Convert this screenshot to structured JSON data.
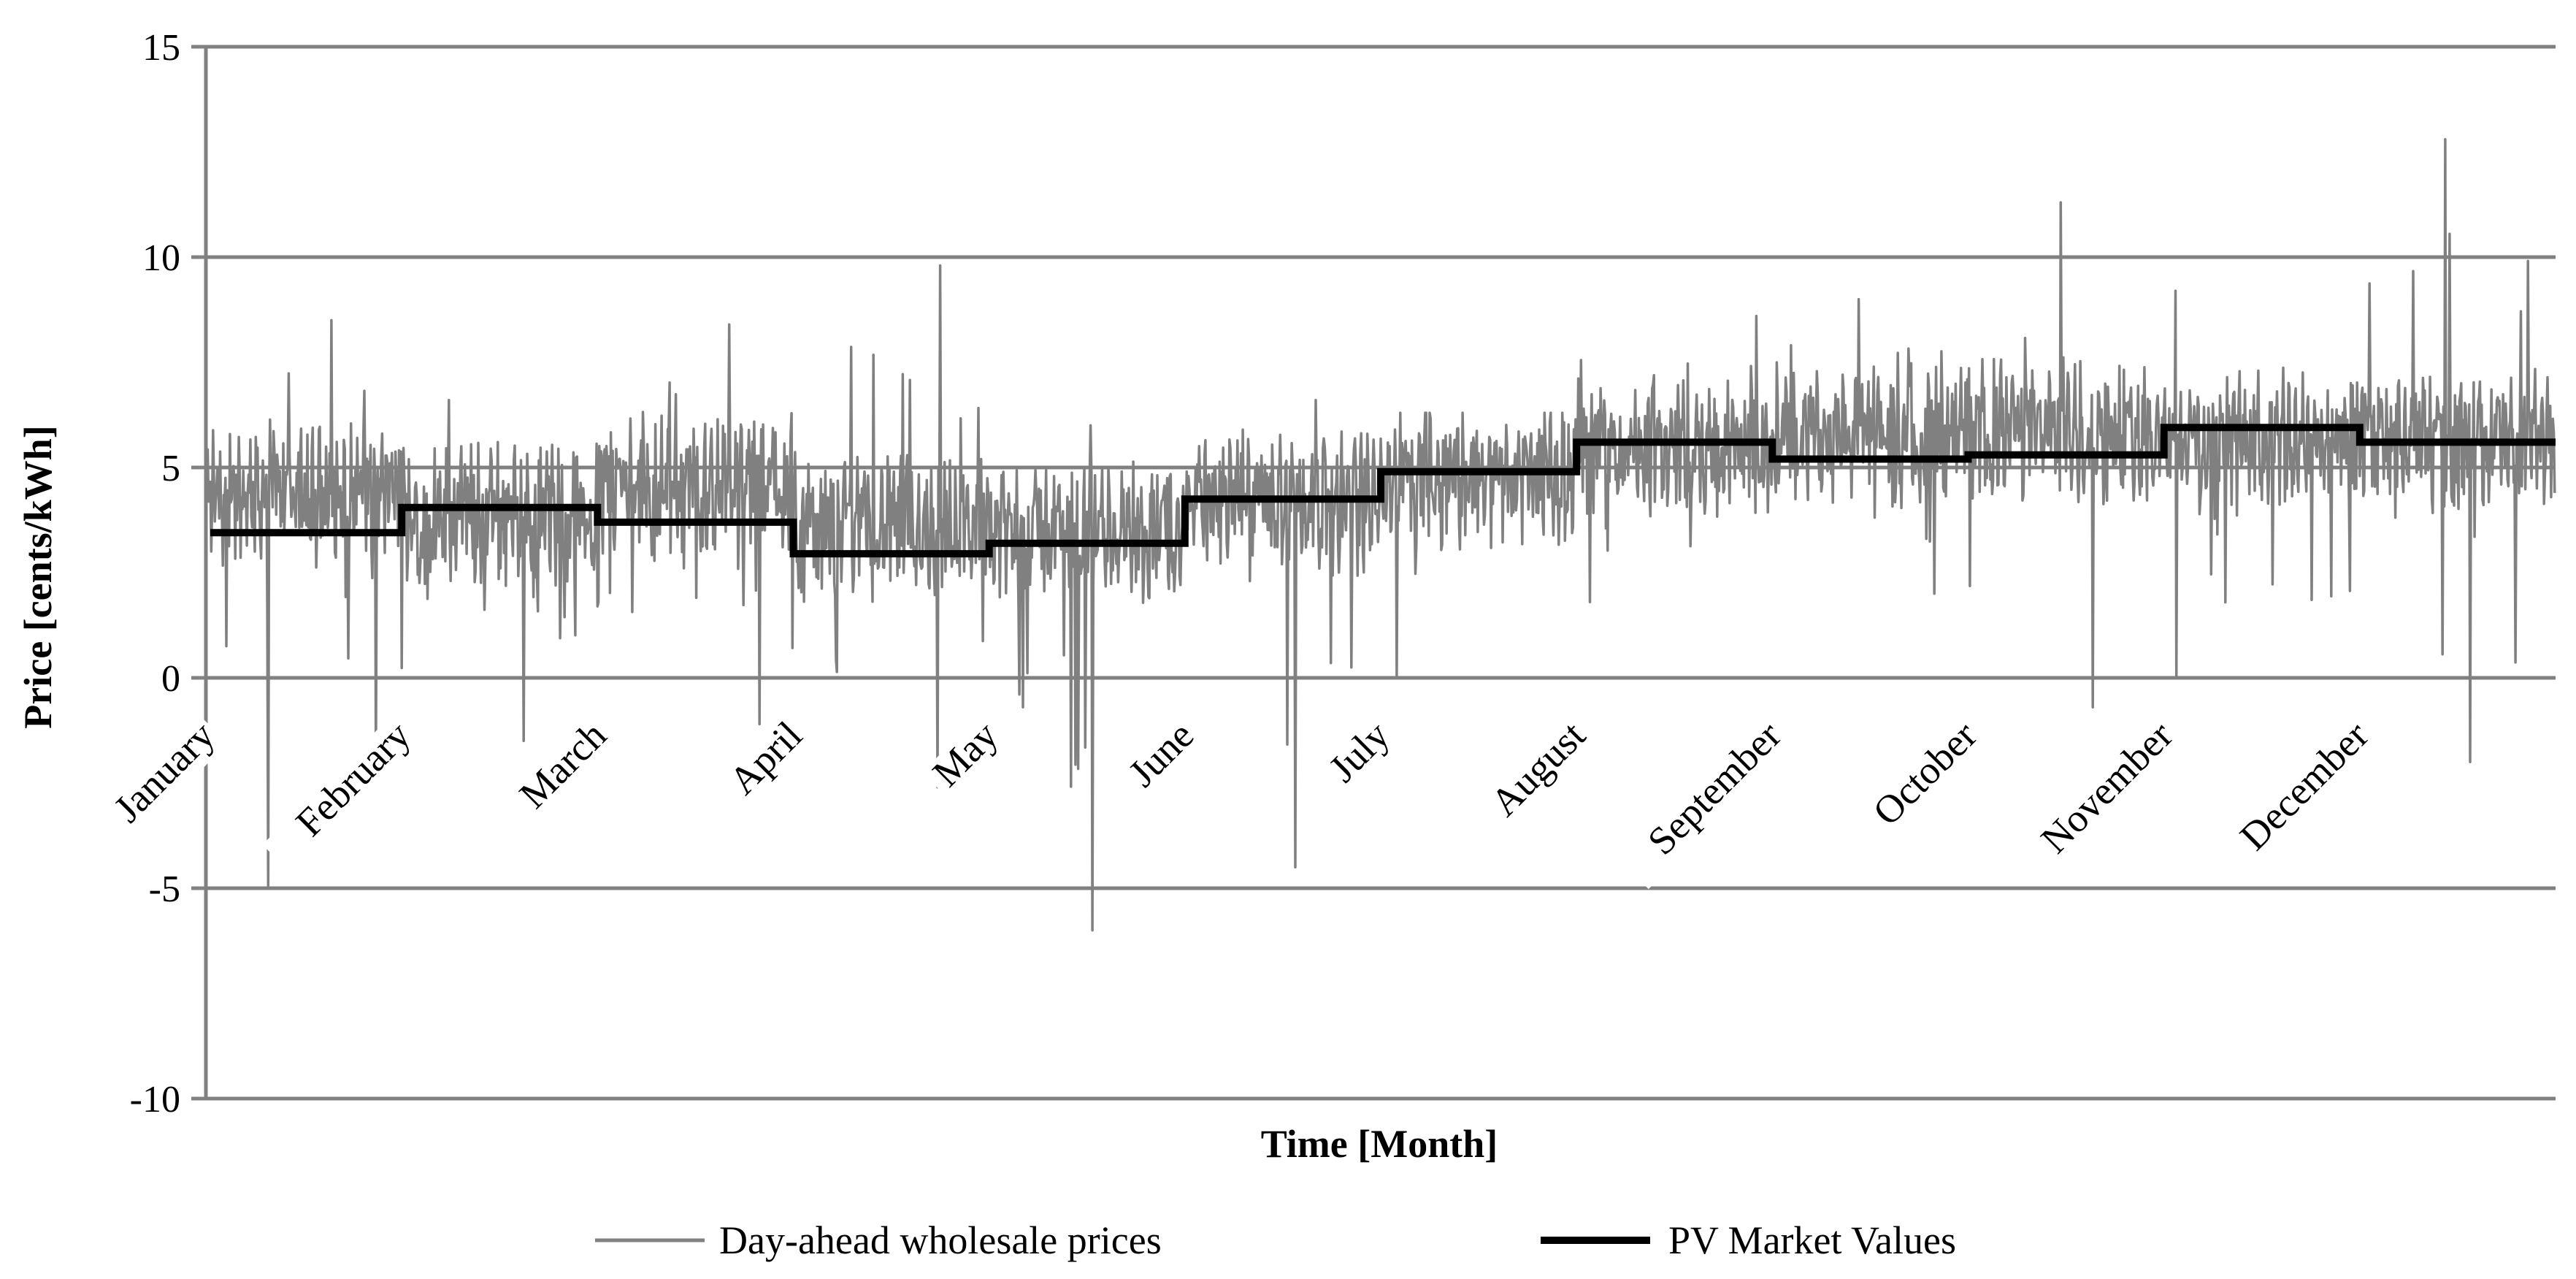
{
  "chart_data": {
    "type": "line",
    "title": "",
    "xlabel": "Time [Month]",
    "ylabel": "Price [cents/kWh]",
    "ylim": [
      -10,
      15
    ],
    "yticks": [
      15,
      10,
      5,
      0,
      -5,
      -10
    ],
    "ytick_labels": [
      "15",
      "10",
      "5",
      "0",
      "-5",
      "-10"
    ],
    "grid": true,
    "legend_position": "bottom",
    "categories": [
      "January",
      "February",
      "March",
      "April",
      "May",
      "June",
      "July",
      "August",
      "September",
      "October",
      "November",
      "December"
    ],
    "series": [
      {
        "name": "Day-ahead wholesale prices",
        "color": "#808080",
        "monthly_mean": [
          4.4,
          3.9,
          4.6,
          3.6,
          3.5,
          4.2,
          4.8,
          5.4,
          5.8,
          5.9,
          5.6,
          5.6
        ],
        "monthly_max": [
          8.5,
          6.6,
          8.4,
          9.8,
          6.0,
          6.6,
          6.3,
          8.6,
          9.0,
          11.3,
          9.2,
          12.8
        ],
        "monthly_min": [
          -5.0,
          -1.5,
          -1.1,
          -2.6,
          -6.0,
          -4.5,
          0.0,
          1.8,
          2.0,
          -0.7,
          0.0,
          -2.0
        ]
      },
      {
        "name": "PV Market Values",
        "color": "#000000",
        "values": [
          3.45,
          4.05,
          3.7,
          2.95,
          3.2,
          4.25,
          4.9,
          5.6,
          5.2,
          5.3,
          5.95,
          5.6
        ]
      }
    ],
    "legend": [
      "Day-ahead wholesale prices",
      "PV Market Values"
    ]
  }
}
